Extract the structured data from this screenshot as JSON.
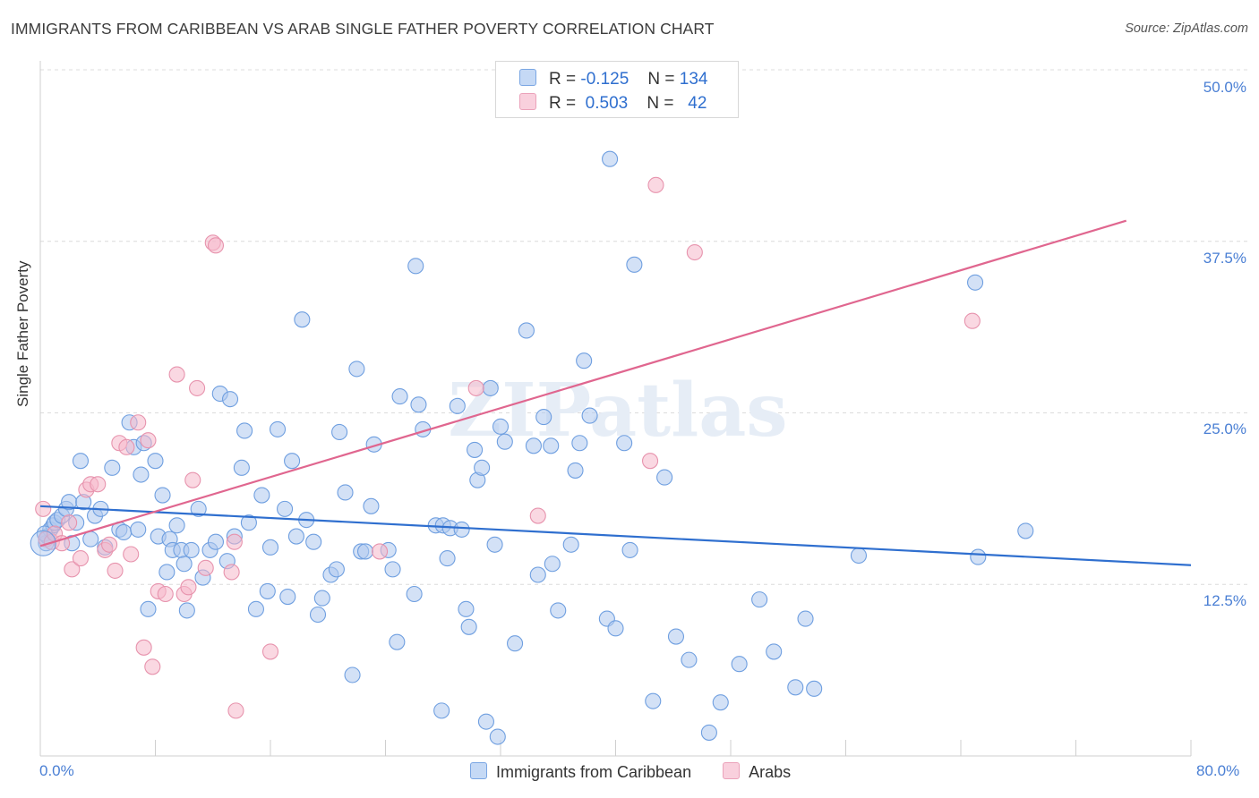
{
  "title": "IMMIGRANTS FROM CARIBBEAN VS ARAB SINGLE FATHER POVERTY CORRELATION CHART",
  "source": "Source: ZipAtlas.com",
  "watermark": "ZIPatlas",
  "legend": {
    "rows": [
      {
        "r_label": "R =",
        "r_value": "-0.125",
        "n_label": "N =",
        "n_value": "134"
      },
      {
        "r_label": "R =",
        "r_value": "0.503",
        "n_label": "N =",
        "n_value": "42"
      }
    ]
  },
  "bottom_legend": [
    "Immigrants from Caribbean",
    "Arabs"
  ],
  "colors": {
    "blue_fill": "#aec8ef",
    "blue_stroke": "#6f9fe0",
    "blue_line": "#2f6fcf",
    "pink_fill": "#f5b8cb",
    "pink_stroke": "#e793ad",
    "pink_line": "#e0668f",
    "tick_text": "#4a7fd4",
    "grid": "#dcdcdc"
  },
  "chart_data": {
    "type": "scatter",
    "xlabel": "",
    "ylabel": "Single Father Poverty",
    "xlim": [
      0,
      80
    ],
    "ylim": [
      0,
      50
    ],
    "x_tick_labels": [
      "0.0%",
      "80.0%"
    ],
    "y_ticks": [
      12.5,
      25.0,
      37.5,
      50.0
    ],
    "y_tick_labels": [
      "12.5%",
      "25.0%",
      "37.5%",
      "50.0%"
    ],
    "grid": "horizontal dashed",
    "series": [
      {
        "name": "Immigrants from Caribbean",
        "color": "#6f9fe0",
        "trend": {
          "x": [
            0,
            80
          ],
          "y": [
            18.2,
            13.9
          ]
        },
        "points": [
          [
            0.4,
            15.5
          ],
          [
            0.5,
            16.0
          ],
          [
            0.7,
            16.5
          ],
          [
            0.9,
            16.8
          ],
          [
            1.0,
            17.0
          ],
          [
            1.2,
            17.2
          ],
          [
            1.5,
            17.5
          ],
          [
            1.8,
            18.0
          ],
          [
            2.0,
            18.5
          ],
          [
            0.3,
            16.2
          ],
          [
            2.2,
            15.5
          ],
          [
            2.5,
            17.0
          ],
          [
            2.8,
            21.5
          ],
          [
            3.0,
            18.5
          ],
          [
            3.5,
            15.8
          ],
          [
            3.8,
            17.5
          ],
          [
            4.2,
            18.0
          ],
          [
            4.5,
            15.2
          ],
          [
            5.0,
            21.0
          ],
          [
            5.5,
            16.5
          ],
          [
            5.8,
            16.3
          ],
          [
            6.2,
            24.3
          ],
          [
            6.5,
            22.5
          ],
          [
            6.8,
            16.5
          ],
          [
            7.0,
            20.5
          ],
          [
            7.2,
            22.8
          ],
          [
            7.5,
            10.7
          ],
          [
            8.0,
            21.5
          ],
          [
            8.2,
            16.0
          ],
          [
            8.5,
            19.0
          ],
          [
            8.8,
            13.4
          ],
          [
            9.0,
            15.8
          ],
          [
            9.2,
            15.0
          ],
          [
            9.5,
            16.8
          ],
          [
            9.8,
            15.0
          ],
          [
            10.0,
            14.0
          ],
          [
            10.2,
            10.6
          ],
          [
            10.5,
            15.0
          ],
          [
            11.0,
            18.0
          ],
          [
            11.3,
            13.0
          ],
          [
            11.8,
            15.0
          ],
          [
            12.2,
            15.6
          ],
          [
            12.5,
            26.4
          ],
          [
            13.0,
            14.2
          ],
          [
            13.2,
            26.0
          ],
          [
            13.5,
            16.0
          ],
          [
            14.0,
            21.0
          ],
          [
            14.2,
            23.7
          ],
          [
            14.5,
            17.0
          ],
          [
            15.0,
            10.7
          ],
          [
            15.4,
            19.0
          ],
          [
            15.8,
            12.0
          ],
          [
            16.0,
            15.2
          ],
          [
            16.5,
            23.8
          ],
          [
            17.0,
            18.0
          ],
          [
            17.2,
            11.6
          ],
          [
            17.5,
            21.5
          ],
          [
            17.8,
            16.0
          ],
          [
            18.2,
            31.8
          ],
          [
            18.5,
            17.2
          ],
          [
            19.0,
            15.6
          ],
          [
            19.3,
            10.3
          ],
          [
            19.6,
            11.5
          ],
          [
            20.2,
            13.2
          ],
          [
            20.6,
            13.6
          ],
          [
            20.8,
            23.6
          ],
          [
            21.2,
            19.2
          ],
          [
            21.7,
            5.9
          ],
          [
            22.0,
            28.2
          ],
          [
            22.3,
            14.9
          ],
          [
            22.6,
            14.9
          ],
          [
            23.0,
            18.2
          ],
          [
            23.2,
            22.7
          ],
          [
            24.2,
            15.0
          ],
          [
            24.5,
            13.6
          ],
          [
            24.8,
            8.3
          ],
          [
            25.0,
            26.2
          ],
          [
            26.0,
            11.8
          ],
          [
            26.3,
            25.6
          ],
          [
            26.6,
            23.8
          ],
          [
            26.1,
            35.7
          ],
          [
            27.5,
            16.8
          ],
          [
            27.9,
            3.3
          ],
          [
            28.0,
            16.8
          ],
          [
            28.3,
            14.4
          ],
          [
            28.5,
            16.6
          ],
          [
            29.0,
            25.5
          ],
          [
            29.6,
            10.7
          ],
          [
            29.8,
            9.4
          ],
          [
            29.3,
            16.5
          ],
          [
            30.2,
            22.3
          ],
          [
            30.4,
            20.1
          ],
          [
            30.7,
            21.0
          ],
          [
            31.0,
            2.5
          ],
          [
            31.3,
            26.8
          ],
          [
            31.8,
            1.4
          ],
          [
            31.6,
            15.4
          ],
          [
            32.0,
            24.0
          ],
          [
            32.3,
            22.9
          ],
          [
            33.0,
            8.2
          ],
          [
            33.8,
            31.0
          ],
          [
            34.3,
            22.6
          ],
          [
            34.6,
            13.2
          ],
          [
            35.0,
            24.7
          ],
          [
            35.5,
            22.6
          ],
          [
            35.6,
            14.0
          ],
          [
            36.0,
            10.6
          ],
          [
            36.9,
            15.4
          ],
          [
            37.2,
            20.8
          ],
          [
            37.5,
            22.8
          ],
          [
            37.8,
            28.8
          ],
          [
            38.2,
            24.8
          ],
          [
            39.4,
            10.0
          ],
          [
            39.6,
            43.5
          ],
          [
            40.0,
            9.3
          ],
          [
            40.6,
            22.8
          ],
          [
            41.0,
            15.0
          ],
          [
            41.3,
            35.8
          ],
          [
            42.6,
            4.0
          ],
          [
            43.4,
            20.3
          ],
          [
            44.2,
            8.7
          ],
          [
            45.1,
            7.0
          ],
          [
            46.5,
            1.7
          ],
          [
            48.6,
            6.7
          ],
          [
            50.0,
            11.4
          ],
          [
            51.0,
            7.6
          ],
          [
            52.5,
            5.0
          ],
          [
            53.2,
            10.0
          ],
          [
            53.8,
            4.9
          ],
          [
            56.9,
            14.6
          ],
          [
            65.0,
            34.5
          ],
          [
            65.2,
            14.5
          ],
          [
            68.5,
            16.4
          ],
          [
            47.3,
            3.9
          ]
        ]
      },
      {
        "name": "Arabs",
        "color": "#e793ad",
        "trend": {
          "x": [
            0,
            75.5
          ],
          "y": [
            15.3,
            39.0
          ]
        },
        "points": [
          [
            0.4,
            15.8
          ],
          [
            0.8,
            15.6
          ],
          [
            1.0,
            16.2
          ],
          [
            1.5,
            15.5
          ],
          [
            2.0,
            17.0
          ],
          [
            2.2,
            13.6
          ],
          [
            2.8,
            14.4
          ],
          [
            3.2,
            19.4
          ],
          [
            3.5,
            19.8
          ],
          [
            4.0,
            19.8
          ],
          [
            4.5,
            15.0
          ],
          [
            4.8,
            15.4
          ],
          [
            5.2,
            13.5
          ],
          [
            5.5,
            22.8
          ],
          [
            6.0,
            22.5
          ],
          [
            6.3,
            14.7
          ],
          [
            6.8,
            24.3
          ],
          [
            7.2,
            7.9
          ],
          [
            7.5,
            23.0
          ],
          [
            7.8,
            6.5
          ],
          [
            8.2,
            12.0
          ],
          [
            8.7,
            11.8
          ],
          [
            9.5,
            27.8
          ],
          [
            10.0,
            11.8
          ],
          [
            10.3,
            12.3
          ],
          [
            10.6,
            20.1
          ],
          [
            10.9,
            26.8
          ],
          [
            11.5,
            13.7
          ],
          [
            12.0,
            37.4
          ],
          [
            12.2,
            37.2
          ],
          [
            13.3,
            13.4
          ],
          [
            13.5,
            15.6
          ],
          [
            13.6,
            3.3
          ],
          [
            16.0,
            7.6
          ],
          [
            23.6,
            14.9
          ],
          [
            30.3,
            26.8
          ],
          [
            34.6,
            17.5
          ],
          [
            42.4,
            21.5
          ],
          [
            42.8,
            41.6
          ],
          [
            45.5,
            36.7
          ],
          [
            64.8,
            31.7
          ],
          [
            0.2,
            18.0
          ]
        ]
      }
    ]
  }
}
